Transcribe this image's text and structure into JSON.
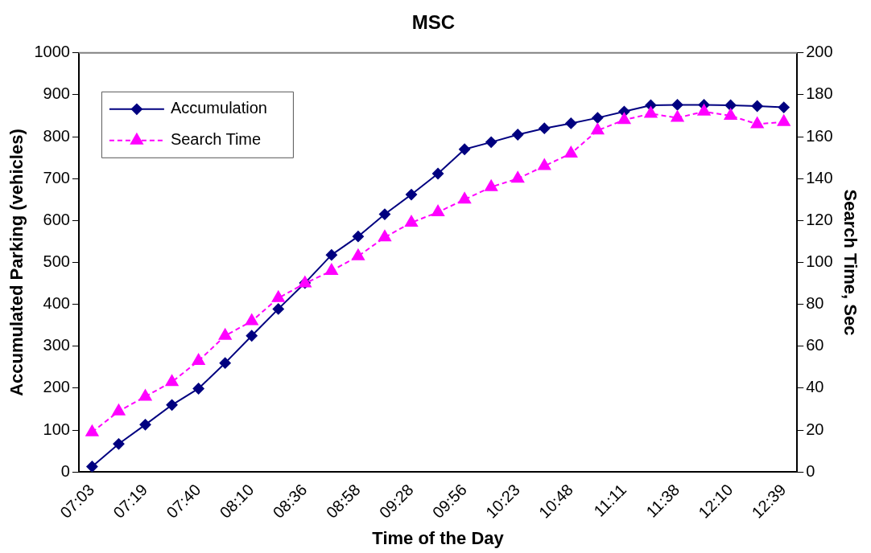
{
  "chart_data": {
    "type": "line",
    "title": "MSC",
    "xlabel": "Time of the Day",
    "ylabel": "Accumulated Parking (vehicles)",
    "y2label": "Search Time, Sec",
    "categories": [
      "07:03",
      null,
      "07:19",
      null,
      "07:40",
      null,
      "08:10",
      null,
      "08:36",
      null,
      "08:58",
      null,
      "09:28",
      null,
      "09:56",
      null,
      "10:23",
      null,
      "10:48",
      null,
      "11:11",
      null,
      "11:38",
      null,
      "12:10",
      null,
      "12:39"
    ],
    "series": [
      {
        "name": "Accumulation",
        "color": "#000080",
        "marker": "diamond",
        "line_style": "solid",
        "values": [
          13,
          67,
          113,
          160,
          199,
          260,
          325,
          389,
          451,
          518,
          562,
          615,
          662,
          712,
          770,
          787,
          805,
          820,
          832,
          845,
          860,
          875,
          876,
          876,
          875,
          873,
          870
        ]
      },
      {
        "name": "Search Time",
        "color": "#ff00ff",
        "marker": "triangle",
        "line_style": "dashed",
        "axis": "y2",
        "values": [
          19,
          29,
          36,
          43,
          53,
          65,
          72,
          83,
          90,
          96,
          103,
          112,
          119,
          124,
          130,
          136,
          140,
          146,
          152,
          163,
          168,
          171,
          169,
          172,
          170,
          166,
          167
        ]
      }
    ],
    "ylim": [
      0,
      1000
    ],
    "yticks": [
      0,
      100,
      200,
      300,
      400,
      500,
      600,
      700,
      800,
      900,
      1000
    ],
    "y2lim": [
      0,
      200
    ],
    "y2ticks": [
      0,
      20,
      40,
      60,
      80,
      100,
      120,
      140,
      160,
      180,
      200
    ],
    "grid": false,
    "legend": "top left"
  }
}
